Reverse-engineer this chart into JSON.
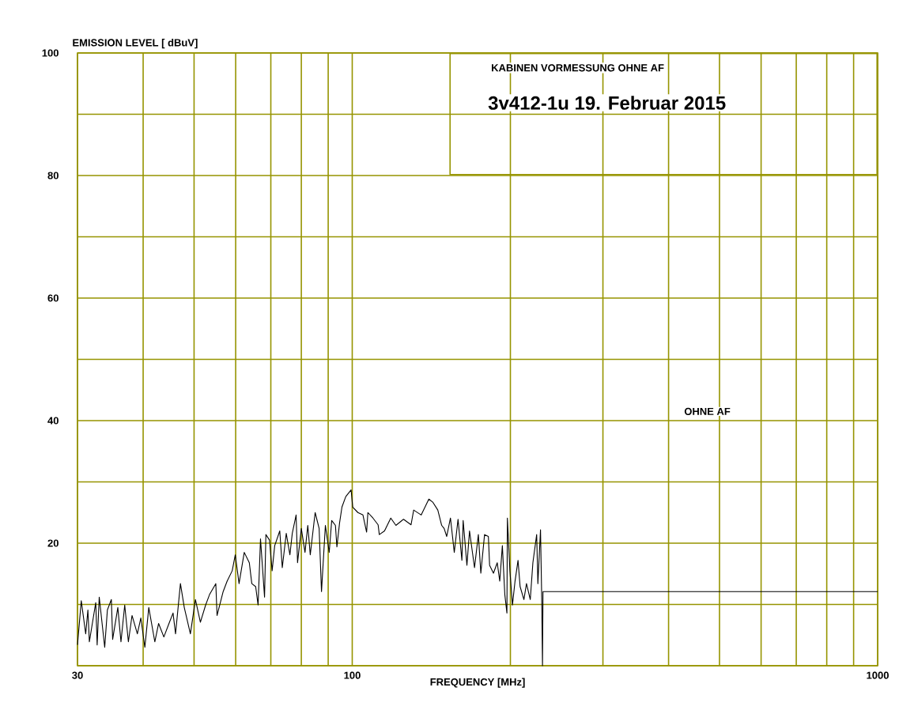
{
  "chart_data": {
    "type": "line",
    "xlabel": "FREQUENCY [MHz]",
    "ylabel": "EMISSION LEVEL [          dBuV]",
    "annotations": [
      "KABINEN VORMESSUNG OHNE AF",
      "3v412-1u   19. Februar 2015",
      "OHNE AF"
    ],
    "log": "x",
    "grid": true,
    "xlim": [
      30,
      1000
    ],
    "ylim": [
      0,
      100
    ],
    "xticks": [
      30,
      {
        "value": 40,
        "label": null
      },
      {
        "value": 50,
        "label": null
      },
      {
        "value": 60,
        "label": null
      },
      {
        "value": 70,
        "label": null
      },
      {
        "value": 80,
        "label": null
      },
      {
        "value": 90,
        "label": null
      },
      100,
      {
        "value": 200,
        "label": null
      },
      {
        "value": 300,
        "label": null
      },
      {
        "value": 400,
        "label": null
      },
      {
        "value": 500,
        "label": null
      },
      {
        "value": 600,
        "label": null
      },
      {
        "value": 700,
        "label": null
      },
      {
        "value": 800,
        "label": null
      },
      {
        "value": 900,
        "label": null
      },
      1000
    ],
    "yticks": [
      {
        "value": 0,
        "label": null
      },
      {
        "value": 10,
        "label": null
      },
      20,
      {
        "value": 30,
        "label": null
      },
      40,
      {
        "value": 50,
        "label": null
      },
      60,
      {
        "value": 70,
        "label": null
      },
      80,
      {
        "value": 90,
        "label": null
      },
      100
    ],
    "series": [
      {
        "color": "#000000",
        "x": [
          30.0,
          30.5,
          31.1,
          31.4,
          31.6,
          32.5,
          32.7,
          33.0,
          33.8,
          34.2,
          34.8,
          35.0,
          35.8,
          36.3,
          36.9,
          37.5,
          38.1,
          39.0,
          39.6,
          40.3,
          41.0,
          42.1,
          42.8,
          43.8,
          44.8,
          45.6,
          46.1,
          47.1,
          47.9,
          49.2,
          50.3,
          51.4,
          52.6,
          53.5,
          55.0,
          55.3,
          56.8,
          57.8,
          59.1,
          59.9,
          60.9,
          62.3,
          63.7,
          64.4,
          65.5,
          66.2,
          66.9,
          68.1,
          68.5,
          69.6,
          70.4,
          71.2,
          72.8,
          73.6,
          74.9,
          76.1,
          76.9,
          78.2,
          78.7,
          80.0,
          81.3,
          82.3,
          83.2,
          85.0,
          86.5,
          87.4,
          88.9,
          90.4,
          91.4,
          92.9,
          93.5,
          94.6,
          95.6,
          97.2,
          99.5,
          100.2,
          102.5,
          104.8,
          106.5,
          107.1,
          109.5,
          112.0,
          112.6,
          115.2,
          118.4,
          121.1,
          125.2,
          129.4,
          130.9,
          135.3,
          139.9,
          142.3,
          145.5,
          148.0,
          149.6,
          151.3,
          153.8,
          156.4,
          159.0,
          161.7,
          162.6,
          165.3,
          167.2,
          170.9,
          173.8,
          175.7,
          178.6,
          181.6,
          182.6,
          185.7,
          188.8,
          190.9,
          193.1,
          195.2,
          197.0,
          197.4,
          199.6,
          201.8,
          204.1,
          206.8,
          208.7,
          212.2,
          214.6,
          218.2,
          220.7,
          224.4,
          225.6,
          228.2,
          229.4,
          230.2,
          230.7,
          1000
        ],
        "values": [
          3.4,
          10.6,
          5.2,
          9.1,
          3.9,
          10.3,
          3.4,
          11.2,
          3.0,
          9.1,
          10.8,
          4.3,
          9.5,
          3.9,
          9.9,
          3.9,
          8.2,
          5.2,
          7.8,
          3.0,
          9.5,
          3.9,
          6.9,
          4.7,
          6.9,
          8.6,
          5.2,
          13.4,
          9.5,
          5.2,
          10.8,
          7.1,
          9.9,
          11.6,
          13.4,
          8.2,
          12.1,
          13.8,
          15.5,
          18.1,
          13.4,
          18.5,
          16.8,
          13.4,
          12.9,
          9.9,
          20.7,
          11.2,
          21.4,
          20.5,
          15.5,
          19.6,
          22.0,
          16.0,
          21.6,
          18.1,
          21.6,
          24.6,
          16.8,
          22.4,
          18.5,
          22.9,
          18.1,
          25.0,
          22.4,
          12.1,
          22.9,
          18.5,
          23.7,
          22.9,
          19.4,
          23.3,
          25.9,
          27.6,
          28.7,
          25.9,
          25.0,
          24.6,
          21.8,
          25.0,
          24.1,
          23.0,
          21.4,
          22.0,
          24.1,
          22.9,
          23.9,
          23.0,
          25.4,
          24.6,
          27.2,
          26.7,
          25.4,
          22.9,
          22.4,
          21.1,
          24.1,
          18.5,
          23.9,
          17.2,
          23.7,
          16.4,
          22.0,
          16.0,
          21.4,
          15.1,
          21.4,
          21.1,
          16.4,
          15.1,
          16.8,
          13.8,
          19.6,
          11.6,
          8.6,
          24.1,
          15.5,
          9.9,
          13.8,
          17.2,
          12.9,
          10.8,
          13.4,
          10.8,
          16.8,
          21.4,
          13.4,
          22.2,
          11.2,
          0,
          12.1,
          12.1
        ]
      }
    ]
  }
}
